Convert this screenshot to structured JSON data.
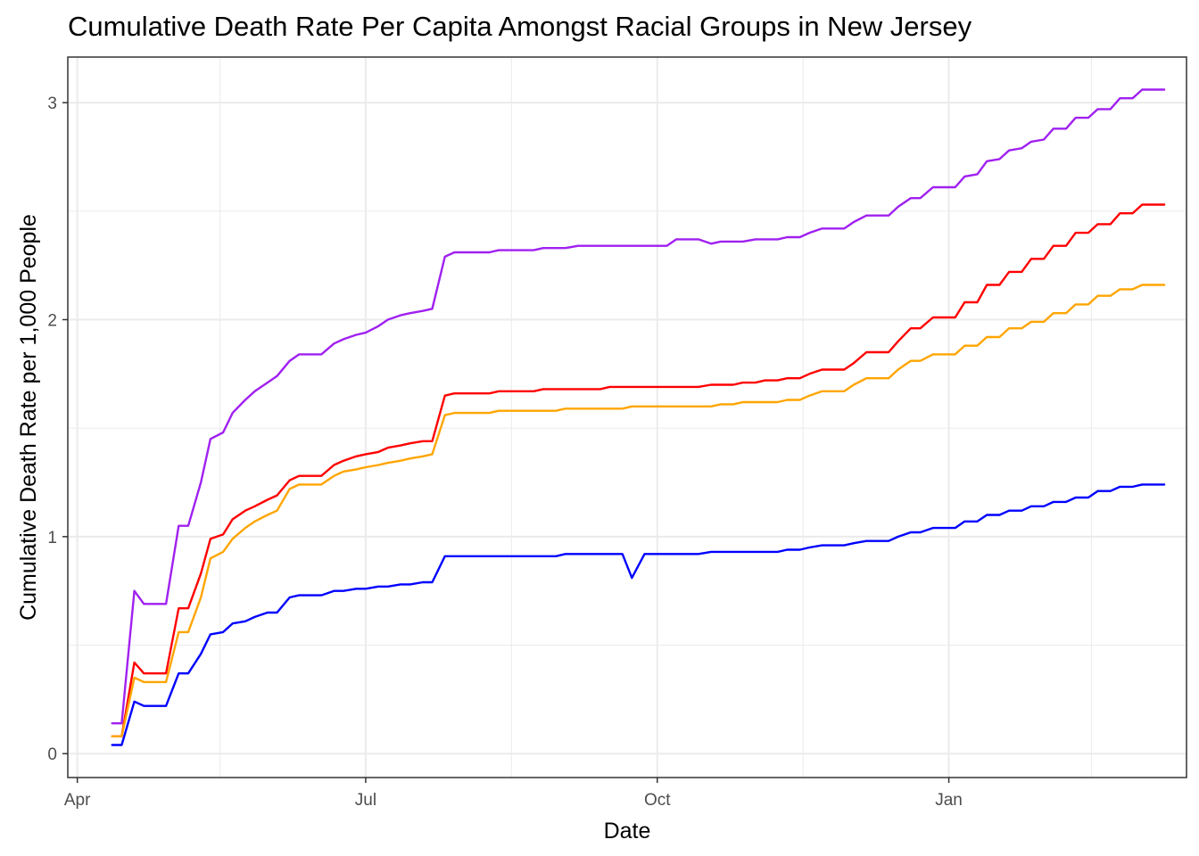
{
  "chart_data": {
    "type": "line",
    "title": "Cumulative Death Rate Per Capita Amongst Racial Groups in New Jersey",
    "xlabel": "Date",
    "ylabel": "Cumulative Death Rate per 1,000 People",
    "x_axis_type": "date",
    "xlim": [
      "2020-03-29",
      "2021-03-17"
    ],
    "ylim": [
      -0.11,
      3.21
    ],
    "x_ticks": [
      {
        "date": "2020-04-01",
        "label": "Apr"
      },
      {
        "date": "2020-07-01",
        "label": "Jul"
      },
      {
        "date": "2020-10-01",
        "label": "Oct"
      },
      {
        "date": "2021-01-01",
        "label": "Jan"
      }
    ],
    "x_minor_ticks": [
      "2020-05-16",
      "2020-08-16",
      "2020-11-16",
      "2021-02-15"
    ],
    "y_ticks": [
      0,
      1,
      2,
      3
    ],
    "y_minor_ticks": [
      0.5,
      1.5,
      2.5
    ],
    "grid": true,
    "legend": "none",
    "x": [
      "2020-04-12",
      "2020-04-15",
      "2020-04-19",
      "2020-04-22",
      "2020-04-26",
      "2020-04-29",
      "2020-05-03",
      "2020-05-06",
      "2020-05-10",
      "2020-05-13",
      "2020-05-17",
      "2020-05-20",
      "2020-05-24",
      "2020-05-27",
      "2020-05-31",
      "2020-06-03",
      "2020-06-07",
      "2020-06-10",
      "2020-06-14",
      "2020-06-17",
      "2020-06-21",
      "2020-06-24",
      "2020-06-28",
      "2020-07-01",
      "2020-07-05",
      "2020-07-08",
      "2020-07-12",
      "2020-07-15",
      "2020-07-19",
      "2020-07-22",
      "2020-07-26",
      "2020-07-29",
      "2020-08-02",
      "2020-08-05",
      "2020-08-09",
      "2020-08-12",
      "2020-08-16",
      "2020-08-19",
      "2020-08-23",
      "2020-08-26",
      "2020-08-30",
      "2020-09-02",
      "2020-09-06",
      "2020-09-09",
      "2020-09-13",
      "2020-09-16",
      "2020-09-20",
      "2020-09-23",
      "2020-09-27",
      "2020-09-30",
      "2020-10-04",
      "2020-10-07",
      "2020-10-11",
      "2020-10-14",
      "2020-10-18",
      "2020-10-21",
      "2020-10-25",
      "2020-10-28",
      "2020-11-01",
      "2020-11-04",
      "2020-11-08",
      "2020-11-11",
      "2020-11-15",
      "2020-11-18",
      "2020-11-22",
      "2020-11-25",
      "2020-11-29",
      "2020-12-02",
      "2020-12-06",
      "2020-12-09",
      "2020-12-13",
      "2020-12-16",
      "2020-12-20",
      "2020-12-23",
      "2020-12-27",
      "2020-12-30",
      "2021-01-03",
      "2021-01-06",
      "2021-01-10",
      "2021-01-13",
      "2021-01-17",
      "2021-01-20",
      "2021-01-24",
      "2021-01-27",
      "2021-01-31",
      "2021-02-03",
      "2021-02-07",
      "2021-02-10",
      "2021-02-14",
      "2021-02-17",
      "2021-02-21",
      "2021-02-24",
      "2021-02-28",
      "2021-03-03",
      "2021-03-07",
      "2021-03-10"
    ],
    "series": [
      {
        "color": "#a020f0",
        "values": [
          0.14,
          0.14,
          0.75,
          0.69,
          0.69,
          0.69,
          1.05,
          1.05,
          1.25,
          1.45,
          1.48,
          1.57,
          1.63,
          1.67,
          1.71,
          1.74,
          1.81,
          1.84,
          1.84,
          1.84,
          1.89,
          1.91,
          1.93,
          1.94,
          1.97,
          2.0,
          2.02,
          2.03,
          2.04,
          2.05,
          2.29,
          2.31,
          2.31,
          2.31,
          2.31,
          2.32,
          2.32,
          2.32,
          2.32,
          2.33,
          2.33,
          2.33,
          2.34,
          2.34,
          2.34,
          2.34,
          2.34,
          2.34,
          2.34,
          2.34,
          2.34,
          2.37,
          2.37,
          2.37,
          2.35,
          2.36,
          2.36,
          2.36,
          2.37,
          2.37,
          2.37,
          2.38,
          2.38,
          2.4,
          2.42,
          2.42,
          2.42,
          2.45,
          2.48,
          2.48,
          2.48,
          2.52,
          2.56,
          2.56,
          2.61,
          2.61,
          2.61,
          2.66,
          2.67,
          2.73,
          2.74,
          2.78,
          2.79,
          2.82,
          2.83,
          2.88,
          2.88,
          2.93,
          2.93,
          2.97,
          2.97,
          3.02,
          3.02,
          3.06,
          3.06,
          3.06
        ]
      },
      {
        "color": "#ff0000",
        "values": [
          0.08,
          0.08,
          0.42,
          0.37,
          0.37,
          0.37,
          0.67,
          0.67,
          0.83,
          0.99,
          1.01,
          1.08,
          1.12,
          1.14,
          1.17,
          1.19,
          1.26,
          1.28,
          1.28,
          1.28,
          1.33,
          1.35,
          1.37,
          1.38,
          1.39,
          1.41,
          1.42,
          1.43,
          1.44,
          1.44,
          1.65,
          1.66,
          1.66,
          1.66,
          1.66,
          1.67,
          1.67,
          1.67,
          1.67,
          1.68,
          1.68,
          1.68,
          1.68,
          1.68,
          1.68,
          1.69,
          1.69,
          1.69,
          1.69,
          1.69,
          1.69,
          1.69,
          1.69,
          1.69,
          1.7,
          1.7,
          1.7,
          1.71,
          1.71,
          1.72,
          1.72,
          1.73,
          1.73,
          1.75,
          1.77,
          1.77,
          1.77,
          1.8,
          1.85,
          1.85,
          1.85,
          1.9,
          1.96,
          1.96,
          2.01,
          2.01,
          2.01,
          2.08,
          2.08,
          2.16,
          2.16,
          2.22,
          2.22,
          2.28,
          2.28,
          2.34,
          2.34,
          2.4,
          2.4,
          2.44,
          2.44,
          2.49,
          2.49,
          2.53,
          2.53,
          2.53
        ]
      },
      {
        "color": "#ffa500",
        "values": [
          0.08,
          0.08,
          0.35,
          0.33,
          0.33,
          0.33,
          0.56,
          0.56,
          0.72,
          0.9,
          0.93,
          0.99,
          1.04,
          1.07,
          1.1,
          1.12,
          1.22,
          1.24,
          1.24,
          1.24,
          1.28,
          1.3,
          1.31,
          1.32,
          1.33,
          1.34,
          1.35,
          1.36,
          1.37,
          1.38,
          1.56,
          1.57,
          1.57,
          1.57,
          1.57,
          1.58,
          1.58,
          1.58,
          1.58,
          1.58,
          1.58,
          1.59,
          1.59,
          1.59,
          1.59,
          1.59,
          1.59,
          1.6,
          1.6,
          1.6,
          1.6,
          1.6,
          1.6,
          1.6,
          1.6,
          1.61,
          1.61,
          1.62,
          1.62,
          1.62,
          1.62,
          1.63,
          1.63,
          1.65,
          1.67,
          1.67,
          1.67,
          1.7,
          1.73,
          1.73,
          1.73,
          1.77,
          1.81,
          1.81,
          1.84,
          1.84,
          1.84,
          1.88,
          1.88,
          1.92,
          1.92,
          1.96,
          1.96,
          1.99,
          1.99,
          2.03,
          2.03,
          2.07,
          2.07,
          2.11,
          2.11,
          2.14,
          2.14,
          2.16,
          2.16,
          2.16
        ]
      },
      {
        "color": "#0000ff",
        "values": [
          0.04,
          0.04,
          0.24,
          0.22,
          0.22,
          0.22,
          0.37,
          0.37,
          0.46,
          0.55,
          0.56,
          0.6,
          0.61,
          0.63,
          0.65,
          0.65,
          0.72,
          0.73,
          0.73,
          0.73,
          0.75,
          0.75,
          0.76,
          0.76,
          0.77,
          0.77,
          0.78,
          0.78,
          0.79,
          0.79,
          0.91,
          0.91,
          0.91,
          0.91,
          0.91,
          0.91,
          0.91,
          0.91,
          0.91,
          0.91,
          0.91,
          0.92,
          0.92,
          0.92,
          0.92,
          0.92,
          0.92,
          0.81,
          0.92,
          0.92,
          0.92,
          0.92,
          0.92,
          0.92,
          0.93,
          0.93,
          0.93,
          0.93,
          0.93,
          0.93,
          0.93,
          0.94,
          0.94,
          0.95,
          0.96,
          0.96,
          0.96,
          0.97,
          0.98,
          0.98,
          0.98,
          1.0,
          1.02,
          1.02,
          1.04,
          1.04,
          1.04,
          1.07,
          1.07,
          1.1,
          1.1,
          1.12,
          1.12,
          1.14,
          1.14,
          1.16,
          1.16,
          1.18,
          1.18,
          1.21,
          1.21,
          1.23,
          1.23,
          1.24,
          1.24,
          1.24
        ]
      }
    ]
  }
}
